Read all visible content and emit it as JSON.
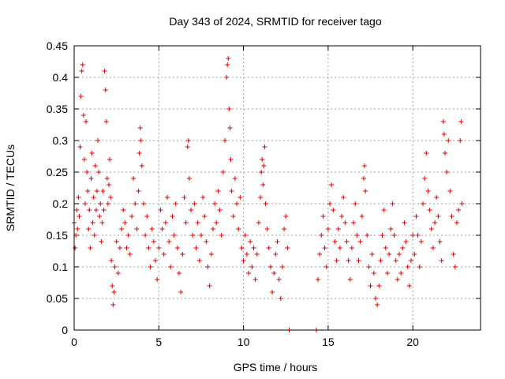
{
  "chart_data": {
    "type": "scatter",
    "title": "Day 343 of 2024, SRMTID for receiver tago",
    "xlabel": "GPS time / hours",
    "ylabel": "SRMTID / TECUs",
    "xlim": [
      0,
      24
    ],
    "ylim": [
      0,
      0.45
    ],
    "xticks": [
      0,
      5,
      10,
      15,
      20
    ],
    "xtick_labels": [
      "0",
      "5",
      "10",
      "15",
      "20"
    ],
    "yticks": [
      0,
      0.05,
      0.1,
      0.15,
      0.2,
      0.25,
      0.3,
      0.35,
      0.4,
      0.45
    ],
    "ytick_labels": [
      "0",
      "0.05",
      "0.1",
      "0.15",
      "0.2",
      "0.25",
      "0.3",
      "0.35",
      "0.4",
      "0.45"
    ],
    "grid": true,
    "marker": "+",
    "marker_color": "#e00000",
    "series": [
      {
        "name": "SRMTID",
        "points": [
          [
            0.0,
            0.17
          ],
          [
            0.05,
            0.13
          ],
          [
            0.1,
            0.15
          ],
          [
            0.15,
            0.19
          ],
          [
            0.2,
            0.16
          ],
          [
            0.25,
            0.21
          ],
          [
            0.3,
            0.18
          ],
          [
            0.35,
            0.29
          ],
          [
            0.4,
            0.37
          ],
          [
            0.45,
            0.41
          ],
          [
            0.5,
            0.42
          ],
          [
            0.55,
            0.34
          ],
          [
            0.6,
            0.27
          ],
          [
            0.65,
            0.2
          ],
          [
            0.7,
            0.33
          ],
          [
            0.75,
            0.25
          ],
          [
            0.8,
            0.22
          ],
          [
            0.85,
            0.16
          ],
          [
            0.9,
            0.19
          ],
          [
            0.95,
            0.13
          ],
          [
            1.0,
            0.24
          ],
          [
            1.05,
            0.28
          ],
          [
            1.1,
            0.17
          ],
          [
            1.15,
            0.21
          ],
          [
            1.2,
            0.15
          ],
          [
            1.25,
            0.26
          ],
          [
            1.3,
            0.19
          ],
          [
            1.35,
            0.22
          ],
          [
            1.4,
            0.3
          ],
          [
            1.45,
            0.25
          ],
          [
            1.5,
            0.18
          ],
          [
            1.55,
            0.2
          ],
          [
            1.6,
            0.14
          ],
          [
            1.65,
            0.17
          ],
          [
            1.7,
            0.22
          ],
          [
            1.75,
            0.19
          ],
          [
            1.8,
            0.41
          ],
          [
            1.85,
            0.38
          ],
          [
            1.9,
            0.33
          ],
          [
            1.95,
            0.24
          ],
          [
            2.0,
            0.2
          ],
          [
            2.05,
            0.23
          ],
          [
            2.1,
            0.27
          ],
          [
            2.15,
            0.21
          ],
          [
            2.2,
            0.11
          ],
          [
            2.25,
            0.07
          ],
          [
            2.3,
            0.04
          ],
          [
            2.35,
            0.06
          ],
          [
            2.4,
            0.1
          ],
          [
            2.5,
            0.14
          ],
          [
            2.6,
            0.09
          ],
          [
            2.7,
            0.13
          ],
          [
            2.8,
            0.16
          ],
          [
            2.9,
            0.19
          ],
          [
            3.0,
            0.17
          ],
          [
            3.1,
            0.13
          ],
          [
            3.2,
            0.15
          ],
          [
            3.3,
            0.12
          ],
          [
            3.4,
            0.18
          ],
          [
            3.5,
            0.24
          ],
          [
            3.6,
            0.2
          ],
          [
            3.7,
            0.16
          ],
          [
            3.8,
            0.22
          ],
          [
            3.85,
            0.28
          ],
          [
            3.9,
            0.32
          ],
          [
            3.95,
            0.3
          ],
          [
            4.0,
            0.26
          ],
          [
            4.1,
            0.2
          ],
          [
            4.2,
            0.15
          ],
          [
            4.3,
            0.18
          ],
          [
            4.4,
            0.13
          ],
          [
            4.5,
            0.1
          ],
          [
            4.6,
            0.16
          ],
          [
            4.7,
            0.14
          ],
          [
            4.8,
            0.11
          ],
          [
            4.9,
            0.08
          ],
          [
            5.0,
            0.13
          ],
          [
            5.1,
            0.19
          ],
          [
            5.2,
            0.16
          ],
          [
            5.3,
            0.12
          ],
          [
            5.4,
            0.17
          ],
          [
            5.5,
            0.21
          ],
          [
            5.6,
            0.14
          ],
          [
            5.7,
            0.1
          ],
          [
            5.8,
            0.18
          ],
          [
            5.9,
            0.15
          ],
          [
            6.0,
            0.2
          ],
          [
            6.1,
            0.13
          ],
          [
            6.2,
            0.09
          ],
          [
            6.3,
            0.06
          ],
          [
            6.4,
            0.12
          ],
          [
            6.5,
            0.21
          ],
          [
            6.6,
            0.17
          ],
          [
            6.7,
            0.29
          ],
          [
            6.75,
            0.3
          ],
          [
            6.8,
            0.24
          ],
          [
            6.9,
            0.19
          ],
          [
            7.0,
            0.15
          ],
          [
            7.1,
            0.2
          ],
          [
            7.2,
            0.13
          ],
          [
            7.3,
            0.17
          ],
          [
            7.4,
            0.11
          ],
          [
            7.5,
            0.15
          ],
          [
            7.6,
            0.21
          ],
          [
            7.7,
            0.18
          ],
          [
            7.8,
            0.14
          ],
          [
            7.9,
            0.1
          ],
          [
            8.0,
            0.07
          ],
          [
            8.1,
            0.12
          ],
          [
            8.2,
            0.16
          ],
          [
            8.3,
            0.2
          ],
          [
            8.4,
            0.17
          ],
          [
            8.5,
            0.22
          ],
          [
            8.6,
            0.19
          ],
          [
            8.7,
            0.15
          ],
          [
            8.8,
            0.25
          ],
          [
            8.9,
            0.3
          ],
          [
            9.0,
            0.4
          ],
          [
            9.05,
            0.42
          ],
          [
            9.1,
            0.43
          ],
          [
            9.15,
            0.35
          ],
          [
            9.2,
            0.32
          ],
          [
            9.25,
            0.27
          ],
          [
            9.3,
            0.22
          ],
          [
            9.4,
            0.18
          ],
          [
            9.5,
            0.24
          ],
          [
            9.6,
            0.2
          ],
          [
            9.7,
            0.16
          ],
          [
            9.8,
            0.21
          ],
          [
            9.9,
            0.13
          ],
          [
            10.0,
            0.11
          ],
          [
            10.1,
            0.15
          ],
          [
            10.2,
            0.12
          ],
          [
            10.3,
            0.09
          ],
          [
            10.4,
            0.14
          ],
          [
            10.5,
            0.1
          ],
          [
            10.6,
            0.13
          ],
          [
            10.7,
            0.08
          ],
          [
            10.8,
            0.12
          ],
          [
            10.9,
            0.17
          ],
          [
            11.0,
            0.21
          ],
          [
            11.05,
            0.25
          ],
          [
            11.1,
            0.27
          ],
          [
            11.15,
            0.23
          ],
          [
            11.2,
            0.26
          ],
          [
            11.25,
            0.29
          ],
          [
            11.3,
            0.2
          ],
          [
            11.4,
            0.16
          ],
          [
            11.5,
            0.13
          ],
          [
            11.6,
            0.1
          ],
          [
            11.7,
            0.06
          ],
          [
            11.8,
            0.09
          ],
          [
            11.9,
            0.12
          ],
          [
            12.0,
            0.14
          ],
          [
            12.1,
            0.08
          ],
          [
            12.2,
            0.05
          ],
          [
            12.3,
            0.1
          ],
          [
            12.4,
            0.16
          ],
          [
            12.5,
            0.18
          ],
          [
            12.6,
            0.13
          ],
          [
            12.7,
            0.0
          ],
          [
            14.3,
            0.0
          ],
          [
            14.4,
            0.08
          ],
          [
            14.5,
            0.12
          ],
          [
            14.6,
            0.15
          ],
          [
            14.7,
            0.18
          ],
          [
            14.8,
            0.13
          ],
          [
            14.9,
            0.1
          ],
          [
            15.0,
            0.16
          ],
          [
            15.1,
            0.2
          ],
          [
            15.2,
            0.23
          ],
          [
            15.3,
            0.19
          ],
          [
            15.4,
            0.14
          ],
          [
            15.5,
            0.11
          ],
          [
            15.6,
            0.16
          ],
          [
            15.7,
            0.13
          ],
          [
            15.8,
            0.18
          ],
          [
            15.9,
            0.21
          ],
          [
            16.0,
            0.17
          ],
          [
            16.1,
            0.14
          ],
          [
            16.2,
            0.11
          ],
          [
            16.3,
            0.08
          ],
          [
            16.4,
            0.13
          ],
          [
            16.5,
            0.17
          ],
          [
            16.6,
            0.2
          ],
          [
            16.7,
            0.15
          ],
          [
            16.8,
            0.11
          ],
          [
            16.9,
            0.14
          ],
          [
            17.0,
            0.18
          ],
          [
            17.1,
            0.24
          ],
          [
            17.15,
            0.26
          ],
          [
            17.2,
            0.22
          ],
          [
            17.3,
            0.15
          ],
          [
            17.4,
            0.1
          ],
          [
            17.5,
            0.07
          ],
          [
            17.6,
            0.12
          ],
          [
            17.7,
            0.09
          ],
          [
            17.8,
            0.05
          ],
          [
            17.9,
            0.04
          ],
          [
            18.0,
            0.07
          ],
          [
            18.1,
            0.11
          ],
          [
            18.2,
            0.15
          ],
          [
            18.3,
            0.19
          ],
          [
            18.4,
            0.13
          ],
          [
            18.5,
            0.09
          ],
          [
            18.6,
            0.12
          ],
          [
            18.7,
            0.16
          ],
          [
            18.8,
            0.2
          ],
          [
            18.9,
            0.15
          ],
          [
            19.0,
            0.11
          ],
          [
            19.1,
            0.08
          ],
          [
            19.2,
            0.12
          ],
          [
            19.3,
            0.09
          ],
          [
            19.4,
            0.13
          ],
          [
            19.5,
            0.17
          ],
          [
            19.6,
            0.14
          ],
          [
            19.7,
            0.1
          ],
          [
            19.8,
            0.07
          ],
          [
            19.9,
            0.11
          ],
          [
            20.0,
            0.15
          ],
          [
            20.1,
            0.12
          ],
          [
            20.2,
            0.18
          ],
          [
            20.3,
            0.15
          ],
          [
            20.4,
            0.1
          ],
          [
            20.5,
            0.14
          ],
          [
            20.6,
            0.2
          ],
          [
            20.7,
            0.24
          ],
          [
            20.8,
            0.28
          ],
          [
            20.9,
            0.22
          ],
          [
            21.0,
            0.19
          ],
          [
            21.1,
            0.16
          ],
          [
            21.2,
            0.13
          ],
          [
            21.3,
            0.17
          ],
          [
            21.4,
            0.21
          ],
          [
            21.5,
            0.18
          ],
          [
            21.6,
            0.14
          ],
          [
            21.7,
            0.11
          ],
          [
            21.8,
            0.33
          ],
          [
            21.85,
            0.31
          ],
          [
            21.9,
            0.28
          ],
          [
            22.0,
            0.25
          ],
          [
            22.1,
            0.3
          ],
          [
            22.2,
            0.22
          ],
          [
            22.3,
            0.18
          ],
          [
            22.4,
            0.12
          ],
          [
            22.5,
            0.1
          ],
          [
            22.6,
            0.17
          ],
          [
            22.7,
            0.19
          ],
          [
            22.8,
            0.3
          ],
          [
            22.85,
            0.33
          ],
          [
            22.9,
            0.2
          ]
        ]
      }
    ]
  }
}
